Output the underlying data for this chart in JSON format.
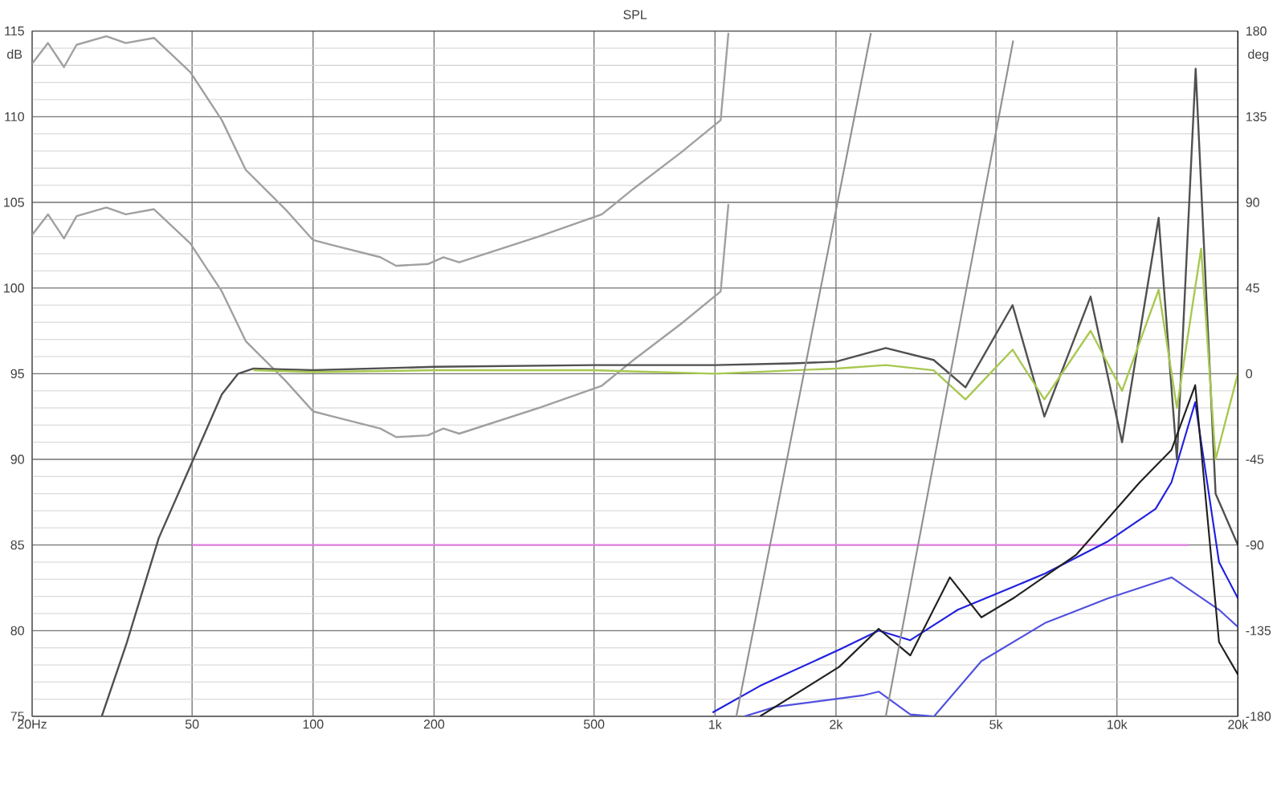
{
  "chart_data": {
    "type": "line",
    "title": "SPL",
    "ylabel": "dB",
    "y2label": "deg",
    "xlim": [
      20,
      20000
    ],
    "log": "x",
    "grid": true,
    "xticks": [
      {
        "value": 20,
        "label": "20Hz"
      },
      {
        "value": 50,
        "label": "50"
      },
      {
        "value": 100,
        "label": "100"
      },
      {
        "value": 200,
        "label": "200"
      },
      {
        "value": 500,
        "label": "500"
      },
      {
        "value": 1000,
        "label": "1k"
      },
      {
        "value": 2000,
        "label": "2k"
      },
      {
        "value": 5000,
        "label": "5k"
      },
      {
        "value": 10000,
        "label": "10k"
      },
      {
        "value": 20000,
        "label": "20k"
      }
    ],
    "ylim": [
      75,
      115
    ],
    "yticks": [
      75,
      80,
      85,
      90,
      95,
      100,
      105,
      110,
      115
    ],
    "y2lim": [
      -180,
      180
    ],
    "y2ticks": [
      -180,
      -135,
      -90,
      -45,
      0,
      45,
      90,
      135,
      180
    ],
    "series": [
      {
        "color": "#a0a0a0",
        "x": [
          20,
          21.9,
          24.0,
          25.8,
          30.6,
          34.2,
          40.2,
          49.5,
          59.3,
          68,
          85.3,
          100,
          112,
          147,
          161,
          193,
          211,
          231,
          364,
          523,
          627,
          822,
          1033,
          1080
        ],
        "values": [
          113.1,
          114.3,
          112.9,
          114.2,
          114.7,
          114.3,
          114.6,
          112.6,
          109.8,
          106.9,
          104.6,
          102.8,
          102.5,
          101.8,
          101.3,
          101.4,
          101.8,
          101.5,
          103.0,
          104.3,
          105.8,
          107.9,
          109.8,
          114.9
        ]
      },
      {
        "color": "#a0a0a0",
        "x": [
          20,
          21.9,
          24.0,
          25.8,
          30.6,
          34.2,
          40.2,
          49.5,
          59.3,
          68,
          85.3,
          100,
          112,
          147,
          161,
          193,
          211,
          231,
          364,
          523,
          627,
          822,
          1033,
          1080
        ],
        "values": [
          103.1,
          104.3,
          102.9,
          104.2,
          104.7,
          104.3,
          104.6,
          102.6,
          99.8,
          96.9,
          94.6,
          92.8,
          92.5,
          91.8,
          91.3,
          91.4,
          91.8,
          91.5,
          93.0,
          94.3,
          95.8,
          97.9,
          99.8,
          104.9
        ]
      },
      {
        "color": "#505050",
        "x": [
          29.8,
          34.4,
          41.3,
          49.5,
          59.3,
          65.1,
          71.1,
          100,
          200,
          500,
          1000,
          1550,
          2000,
          2660,
          3500,
          4200,
          5500,
          6600,
          8600,
          10300,
          12700,
          14100,
          15700,
          17600,
          20000
        ],
        "values": [
          75,
          79.3,
          85.4,
          89.6,
          93.8,
          95.0,
          95.3,
          95.2,
          95.4,
          95.5,
          95.5,
          95.6,
          95.7,
          96.5,
          95.8,
          94.2,
          99.0,
          92.5,
          99.5,
          91,
          104.1,
          90,
          112.8,
          88,
          85
        ]
      },
      {
        "color": "#a8c850",
        "x": [
          71.1,
          100,
          200,
          500,
          1000,
          2000,
          2660,
          3500,
          4200,
          5500,
          6600,
          8600,
          10300,
          12700,
          14100,
          16200,
          17600,
          20000
        ],
        "values": [
          95.2,
          95.1,
          95.2,
          95.2,
          95.0,
          95.3,
          95.5,
          95.2,
          93.5,
          96.4,
          93.5,
          97.5,
          94,
          99.9,
          93,
          102.3,
          90,
          95
        ]
      },
      {
        "color": "#e080e0",
        "x": [
          50,
          15100
        ],
        "values": [
          85,
          85
        ]
      },
      {
        "color": "#2020e0",
        "axis": "y2",
        "x": [
          986,
          1294,
          2037,
          2554,
          3061,
          4020,
          5520,
          6620,
          9510,
          12480,
          13670,
          15660,
          17950,
          20000
        ],
        "values": [
          -178,
          -164,
          -145,
          -135,
          -140,
          -124,
          -112,
          -105,
          -88,
          -71,
          -57,
          -15,
          -99,
          -118
        ]
      },
      {
        "color": "#5050e0",
        "axis": "y2",
        "x": [
          1183,
          1416,
          2334,
          2554,
          3061,
          3508,
          4600,
          6620,
          9510,
          13670,
          17950,
          20000
        ],
        "values": [
          -180,
          -175,
          -169,
          -167,
          -179,
          -180,
          -151,
          -131,
          -118,
          -107,
          -124,
          -133
        ]
      },
      {
        "color": "#202020",
        "axis": "y2",
        "x": [
          1294,
          2037,
          2554,
          3061,
          3840,
          4600,
          5520,
          7930,
          11400,
          13670,
          15660,
          17950,
          20000
        ],
        "values": [
          -180,
          -154,
          -134,
          -148,
          -107,
          -128,
          -118,
          -95,
          -57,
          -40,
          -6,
          -141,
          -158
        ]
      },
      {
        "color": "#909090",
        "axis": "y2",
        "x": [
          1130,
          2443
        ],
        "values": [
          -180,
          179
        ]
      },
      {
        "color": "#909090",
        "axis": "y2",
        "x": [
          2660,
          5520
        ],
        "values": [
          -180,
          175
        ]
      }
    ]
  }
}
